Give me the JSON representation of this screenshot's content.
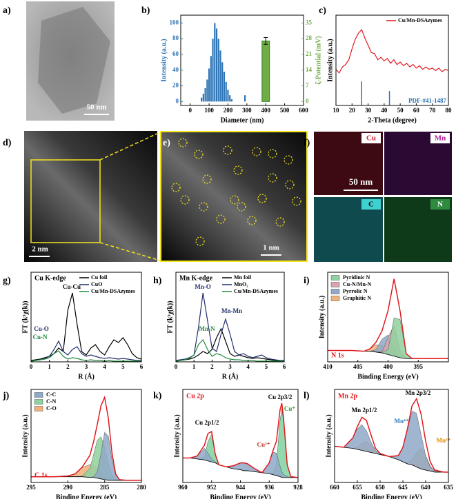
{
  "panel_labels": [
    "a)",
    "b)",
    "c)",
    "d)",
    "e)",
    "f)",
    "g)",
    "h)",
    "i)",
    "j)",
    "k)",
    "l)"
  ],
  "images": {
    "a": {
      "scale": "50 nm"
    },
    "d": {
      "scale": "2 nm"
    },
    "e": {
      "scale": "1 nm"
    },
    "f": {
      "maps": [
        "Cu",
        "Mn",
        "C",
        "N"
      ],
      "scale": "50 nm"
    }
  },
  "chart_data": [
    {
      "type": "bar",
      "xlabel": "Diameter (nm)",
      "ylabel": "Intensity (a.u.)",
      "y2label": "ζ-Potential (mV)",
      "xlim": [
        -50,
        600
      ],
      "xticks": [
        0,
        100,
        200,
        300,
        400,
        500,
        600
      ],
      "ylim": [
        -5,
        110
      ],
      "yticks": [
        0,
        20,
        40,
        60,
        80,
        100
      ],
      "y2lim": [
        -1.75,
        38.5
      ],
      "y2ticks": [
        0,
        7,
        14,
        21,
        28,
        35
      ],
      "series": [
        {
          "color": "#2e75b6",
          "x": [
            60,
            70,
            80,
            90,
            100,
            110,
            120,
            130,
            140,
            150,
            160,
            170,
            180,
            190,
            200,
            210,
            220,
            290
          ],
          "values": [
            5,
            10,
            17,
            28,
            42,
            58,
            80,
            100,
            93,
            80,
            65,
            50,
            38,
            25,
            15,
            8,
            3,
            8
          ]
        },
        {
          "color": "#70ad47",
          "axis": "y2",
          "x": [
            400
          ],
          "values": [
            27
          ],
          "errors": [
            1.5
          ]
        }
      ]
    },
    {
      "type": "line",
      "xlabel": "2-Theta (degree)",
      "ylabel": "Intensity (a.u.)",
      "legend": "upper right",
      "xlim": [
        10,
        80
      ],
      "xticks": [
        10,
        20,
        30,
        40,
        50,
        60,
        70,
        80
      ],
      "ylim": [
        0,
        75
      ],
      "x": [
        10,
        12,
        14,
        16,
        18,
        20,
        22,
        24,
        26,
        28,
        30,
        32,
        34,
        36,
        38,
        40,
        42,
        44,
        46,
        48,
        50,
        52,
        54,
        56,
        58,
        60,
        62,
        64,
        66,
        68,
        70,
        72,
        74,
        76,
        78,
        80
      ],
      "series": [
        {
          "name": "Cu/Mn-DSAzymes",
          "color": "#e0191e",
          "values": [
            30,
            27,
            32,
            34,
            38,
            47,
            55,
            60,
            63,
            56,
            50,
            44,
            43,
            38,
            40,
            37,
            39,
            35,
            38,
            34,
            36,
            33,
            35,
            32,
            34,
            31,
            33,
            30,
            32,
            30,
            31,
            29,
            31,
            28,
            30,
            29
          ]
        },
        {
          "name": "PDF-#41-1487",
          "color": "#2e75b6",
          "style": "stick",
          "x": [
            26,
            43.3
          ],
          "values": [
            20,
            12
          ]
        }
      ]
    },
    {
      "type": "line",
      "title": "Cu K-edge",
      "xlabel": "R (Å)",
      "ylabel": "FT (k³χ(k))",
      "legend": "upper right",
      "xlim": [
        0,
        6
      ],
      "xticks": [
        0,
        1,
        2,
        3,
        4,
        5,
        6
      ],
      "ylim": [
        0,
        130
      ],
      "x": [
        0,
        0.25,
        0.5,
        0.75,
        1,
        1.25,
        1.5,
        1.75,
        2,
        2.25,
        2.5,
        2.75,
        3,
        3.25,
        3.5,
        3.75,
        4,
        4.25,
        4.5,
        4.75,
        5,
        5.25,
        5.5,
        5.75,
        6
      ],
      "series": [
        {
          "name": "Cu foil",
          "color": "#000000",
          "values": [
            2,
            3,
            4,
            6,
            8,
            12,
            20,
            15,
            75,
            100,
            55,
            15,
            10,
            20,
            25,
            15,
            10,
            22,
            32,
            28,
            35,
            25,
            12,
            6,
            4
          ]
        },
        {
          "name": "CuO",
          "color": "#1f2d6b",
          "values": [
            1,
            2,
            3,
            5,
            8,
            18,
            30,
            15,
            10,
            18,
            22,
            12,
            8,
            10,
            8,
            6,
            5,
            6,
            5,
            4,
            5,
            4,
            3,
            2,
            2
          ]
        },
        {
          "name": "Cu/Mn-DSAzymes",
          "color": "#1e8a3a",
          "values": [
            1,
            2,
            3,
            4,
            6,
            12,
            16,
            8,
            4,
            6,
            5,
            3,
            2,
            3,
            2,
            2,
            1,
            2,
            1,
            1,
            1,
            1,
            1,
            1,
            1
          ]
        }
      ],
      "annotations": [
        {
          "text": "Cu-Cu",
          "color": "#000000"
        },
        {
          "text": "Cu-O",
          "color": "#1f2d6b"
        },
        {
          "text": "Cu-N",
          "color": "#1e8a3a"
        }
      ]
    },
    {
      "type": "line",
      "title": "Mn K-edge",
      "xlabel": "R (Å)",
      "ylabel": "FT (k³χ(k))",
      "legend": "upper right",
      "xlim": [
        0,
        6
      ],
      "xticks": [
        0,
        1,
        2,
        3,
        4,
        5,
        6
      ],
      "ylim": [
        0,
        130
      ],
      "x": [
        0,
        0.25,
        0.5,
        0.75,
        1,
        1.25,
        1.5,
        1.75,
        2,
        2.25,
        2.5,
        2.75,
        3,
        3.25,
        3.5,
        3.75,
        4,
        4.25,
        4.5,
        4.75,
        5,
        5.25,
        5.5,
        5.75,
        6
      ],
      "series": [
        {
          "name": "Mn foil",
          "color": "#000000",
          "values": [
            1,
            2,
            3,
            4,
            6,
            10,
            15,
            12,
            18,
            35,
            48,
            30,
            12,
            8,
            10,
            8,
            6,
            5,
            6,
            5,
            4,
            3,
            2,
            2,
            1
          ]
        },
        {
          "name": "MnO₂",
          "color": "#1f2d6b",
          "values": [
            2,
            3,
            4,
            6,
            10,
            50,
            100,
            60,
            20,
            15,
            40,
            62,
            40,
            15,
            10,
            12,
            8,
            6,
            8,
            10,
            6,
            4,
            3,
            2,
            2
          ]
        },
        {
          "name": "Cu/Mn-DSAzymes",
          "color": "#1e8a3a",
          "values": [
            1,
            2,
            3,
            5,
            10,
            25,
            32,
            18,
            8,
            12,
            10,
            6,
            4,
            3,
            3,
            2,
            2,
            2,
            1,
            1,
            1,
            1,
            1,
            1,
            1
          ]
        }
      ],
      "annotations": [
        {
          "text": "Mn-O",
          "color": "#1f2d6b"
        },
        {
          "text": "Mn-Mn",
          "color": "#1f2d6b"
        },
        {
          "text": "Mn-N",
          "color": "#1e8a3a"
        }
      ]
    },
    {
      "type": "area",
      "title": "N 1s",
      "title_color": "#e0191e",
      "xlabel": "Binding Energy (eV)",
      "ylabel": "Intensity (a.u.)",
      "legend": "upper left",
      "xlim": [
        410,
        390
      ],
      "xticks": [
        410,
        405,
        400,
        395
      ],
      "ylim": [
        0,
        110
      ],
      "x": [
        410,
        408,
        406,
        404,
        403,
        402,
        401,
        400,
        399,
        398,
        397,
        396,
        395,
        394,
        392,
        390
      ],
      "background": [
        14,
        14,
        14,
        13,
        13,
        12,
        11,
        9,
        7,
        5,
        4,
        4,
        4,
        4,
        4,
        4
      ],
      "series": [
        {
          "name": "Pyridinic N",
          "color": "#8fd19e",
          "values": [
            0,
            0,
            0,
            0,
            0,
            0,
            0,
            6,
            47,
            47,
            6,
            0,
            0,
            0,
            0,
            0
          ]
        },
        {
          "name": "Cu-N/Mn-N",
          "color": "#d9a3b0",
          "values": [
            0,
            0,
            0,
            0,
            0,
            0,
            1,
            21,
            38,
            9,
            0,
            0,
            0,
            0,
            0,
            0
          ]
        },
        {
          "name": "Pyrrolic N",
          "color": "#8fa9c8",
          "values": [
            0,
            0,
            0,
            0,
            0,
            3,
            17,
            24,
            10,
            1,
            0,
            0,
            0,
            0,
            0,
            0
          ]
        },
        {
          "name": "Graphitic N",
          "color": "#f0b27a",
          "values": [
            0,
            0,
            0,
            0,
            3,
            9,
            9,
            3,
            0,
            0,
            0,
            0,
            0,
            0,
            0,
            0
          ]
        }
      ],
      "envelope": {
        "color": "#e0191e",
        "values": [
          14,
          14,
          14,
          13,
          16,
          24,
          38,
          63,
          102,
          62,
          10,
          4,
          4,
          4,
          4,
          4
        ]
      }
    },
    {
      "type": "area",
      "title": "C 1s",
      "title_color": "#e0191e",
      "xlabel": "Binding Energy (eV)",
      "ylabel": "Intensity (a.u.)",
      "legend": "upper left",
      "xlim": [
        295,
        280
      ],
      "xticks": [
        295,
        290,
        285,
        280
      ],
      "ylim": [
        0,
        130
      ],
      "x": [
        295,
        292,
        290,
        289,
        288,
        287,
        286.5,
        286,
        285.5,
        285,
        284.5,
        284,
        283.5,
        283,
        282,
        280
      ],
      "background": [
        8,
        8,
        8,
        8,
        8,
        7,
        7,
        6,
        5,
        4,
        3,
        3,
        3,
        3,
        3,
        3
      ],
      "series": [
        {
          "name": "C-C",
          "color": "#8fa9c8",
          "values": [
            0,
            0,
            0,
            0,
            0,
            0,
            1,
            9,
            35,
            66,
            62,
            29,
            7,
            1,
            0,
            0
          ]
        },
        {
          "name": "C-N",
          "color": "#8fd19e",
          "values": [
            0,
            0,
            0,
            0,
            1,
            13,
            32,
            53,
            59,
            45,
            23,
            8,
            2,
            0,
            0,
            0
          ]
        },
        {
          "name": "C-O",
          "color": "#f0b27a",
          "values": [
            0,
            0,
            1,
            4,
            13,
            18,
            17,
            13,
            8,
            4,
            2,
            1,
            0,
            0,
            0,
            0
          ]
        }
      ],
      "envelope": {
        "color": "#e0191e",
        "values": [
          8,
          8,
          9,
          12,
          22,
          38,
          57,
          81,
          107,
          119,
          90,
          41,
          12,
          4,
          3,
          3
        ]
      }
    },
    {
      "type": "area",
      "title": "Cu 2p",
      "title_color": "#e0191e",
      "xlabel": "Binding  Energy (eV)",
      "ylabel": "Intensity (a.u.)",
      "legend": false,
      "xlim": [
        960,
        928
      ],
      "xticks": [
        960,
        952,
        944,
        936,
        928
      ],
      "ylim": [
        0,
        95
      ],
      "x": [
        960,
        958,
        956,
        954,
        953,
        952,
        951,
        950,
        948,
        946,
        944,
        943,
        942,
        940,
        938,
        936,
        935,
        934,
        933,
        932.5,
        932,
        931,
        930,
        928
      ],
      "background": [
        25,
        25,
        24,
        23,
        22,
        21,
        20,
        18,
        16,
        14,
        13,
        12,
        12,
        11,
        10,
        9,
        8,
        7,
        6,
        5,
        5,
        5,
        5,
        5
      ],
      "series": [
        {
          "name": "Cu²⁺",
          "color": "#8fa9c8",
          "label_color": "#c0392b",
          "values": [
            0,
            0,
            3,
            12,
            8,
            3,
            1,
            0,
            0,
            3,
            7,
            8,
            7,
            3,
            0,
            11,
            23,
            23,
            11,
            6,
            3,
            1,
            0,
            0
          ]
        },
        {
          "name": "Cu⁺",
          "color": "#7fd4a0",
          "label_color": "#2ca02c",
          "values": [
            0,
            0,
            0,
            3,
            20,
            28,
            8,
            0,
            0,
            0,
            0,
            0,
            0,
            0,
            0,
            0,
            1,
            12,
            57,
            70,
            57,
            12,
            1,
            0
          ]
        }
      ],
      "envelope": {
        "color": "#e0191e",
        "values": [
          25,
          25,
          27,
          38,
          50,
          52,
          29,
          18,
          16,
          17,
          20,
          20,
          19,
          14,
          10,
          20,
          32,
          42,
          74,
          81,
          65,
          18,
          6,
          5
        ]
      },
      "annotations": [
        {
          "text": "Cu 2p1/2",
          "color": "#000000"
        },
        {
          "text": "Cu 2p3/2",
          "color": "#000000"
        }
      ]
    },
    {
      "type": "area",
      "title": "Mn 2p",
      "title_color": "#e0191e",
      "xlabel": "Binding Energy (eV)",
      "ylabel": "Intensity (a.u.)",
      "legend": false,
      "xlim": [
        660,
        635
      ],
      "xticks": [
        660,
        655,
        650,
        645,
        640,
        635
      ],
      "ylim": [
        0,
        90
      ],
      "x": [
        660,
        658,
        656,
        655,
        654,
        653,
        652,
        651,
        650,
        648,
        646,
        645,
        644,
        643,
        642,
        641,
        640,
        639,
        638,
        636,
        635
      ],
      "background": [
        35,
        34,
        33,
        32,
        31,
        30,
        29,
        28,
        27,
        25,
        22,
        20,
        18,
        17,
        15,
        13,
        12,
        11,
        10,
        10,
        10
      ],
      "series": [
        {
          "name": "Mn⁴⁺",
          "color": "#8fa9c8",
          "label_color": "#2e75b6",
          "values": [
            0,
            0,
            10,
            20,
            25,
            20,
            10,
            3,
            1,
            0,
            4,
            14,
            33,
            52,
            52,
            33,
            14,
            4,
            1,
            0,
            0
          ]
        },
        {
          "name": "Mn³⁺",
          "color": "#f0b27a",
          "label_color": "#e08a00",
          "values": [
            0,
            0,
            0,
            2,
            7,
            10,
            7,
            2,
            0,
            0,
            0,
            0,
            1,
            5,
            14,
            20,
            14,
            5,
            1,
            0,
            0
          ]
        }
      ],
      "envelope": {
        "color": "#e0191e",
        "values": [
          35,
          34,
          43,
          54,
          63,
          60,
          46,
          33,
          28,
          25,
          26,
          34,
          52,
          74,
          81,
          66,
          40,
          20,
          12,
          10,
          10
        ]
      },
      "annotations": [
        {
          "text": "Mn 2p1/2",
          "color": "#000000"
        },
        {
          "text": "Mn 2p3/2",
          "color": "#000000"
        }
      ]
    }
  ]
}
